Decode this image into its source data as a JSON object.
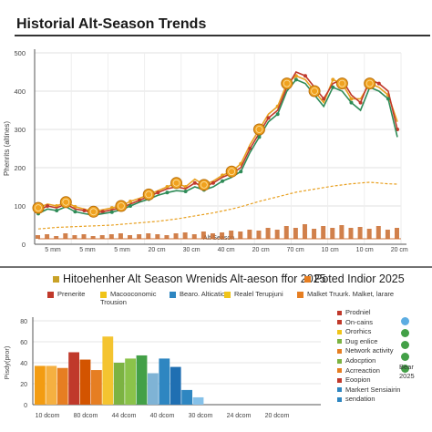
{
  "chart_data": [
    {
      "type": "line",
      "title": "Historial Alt-Season Trends",
      "xlabel": "Alt-Season",
      "ylabel": "Phenrits (altines)",
      "ylim": [
        0,
        500
      ],
      "yticks": [
        "0",
        "100",
        "200",
        "300",
        "400",
        "500"
      ],
      "xticks": [
        "5 mm",
        "5 mm",
        "5 mm",
        "20 cm",
        "30 cm",
        "40 cm",
        "20 cm",
        "70 cm",
        "10 cm",
        "10 cm",
        "20 cm"
      ],
      "grid": true,
      "x": [
        0,
        1,
        2,
        3,
        4,
        5,
        6,
        7,
        8,
        9,
        10,
        11,
        12,
        13,
        14,
        15,
        16,
        17,
        18,
        19,
        20,
        21,
        22,
        23,
        24,
        25,
        26,
        27,
        28,
        29,
        30,
        31,
        32,
        33,
        34,
        35,
        36,
        37,
        38,
        39
      ],
      "series": [
        {
          "color": "#e8a020",
          "values": [
            95,
            105,
            100,
            110,
            98,
            92,
            85,
            90,
            95,
            100,
            112,
            120,
            130,
            140,
            150,
            160,
            150,
            170,
            155,
            165,
            180,
            190,
            210,
            260,
            300,
            340,
            360,
            420,
            440,
            430,
            400,
            370,
            430,
            420,
            380,
            380,
            420,
            410,
            390,
            320
          ]
        },
        {
          "color": "#c0392b",
          "values": [
            88,
            100,
            95,
            105,
            92,
            88,
            82,
            85,
            90,
            95,
            105,
            115,
            125,
            135,
            145,
            150,
            145,
            160,
            150,
            160,
            175,
            185,
            200,
            250,
            290,
            330,
            350,
            410,
            450,
            440,
            410,
            380,
            420,
            430,
            390,
            370,
            430,
            420,
            400,
            300
          ]
        },
        {
          "color": "#2e8b57",
          "values": [
            80,
            92,
            88,
            98,
            85,
            80,
            76,
            80,
            84,
            90,
            100,
            110,
            118,
            128,
            135,
            140,
            138,
            150,
            142,
            150,
            165,
            175,
            190,
            240,
            280,
            320,
            340,
            400,
            430,
            420,
            390,
            360,
            410,
            400,
            370,
            350,
            410,
            400,
            380,
            280
          ]
        }
      ],
      "trend": {
        "color": "#e8a020",
        "values": [
          40,
          42,
          44,
          45,
          46,
          47,
          48,
          49,
          50,
          52,
          54,
          56,
          58,
          60,
          63,
          66,
          70,
          74,
          78,
          82,
          87,
          92,
          98,
          105,
          112,
          118,
          124,
          130,
          136,
          140,
          144,
          148,
          152,
          155,
          158,
          160,
          162,
          160,
          158,
          157
        ]
      },
      "volume": [
        4,
        5,
        3,
        6,
        4,
        5,
        3,
        4,
        5,
        6,
        4,
        5,
        6,
        5,
        4,
        6,
        7,
        5,
        8,
        6,
        7,
        9,
        8,
        10,
        9,
        12,
        10,
        14,
        12,
        16,
        11,
        14,
        12,
        15,
        12,
        13,
        11,
        14,
        10,
        12
      ]
    },
    {
      "type": "bar",
      "title": "Hitoehenher Alt Season Wrenids Alt-aeson ffor 2025",
      "ylabel": "Pisdy(pror)",
      "ylim": [
        0,
        80
      ],
      "yticks": [
        "0",
        "20",
        "40",
        "60",
        "80"
      ],
      "xticks": [
        "10 dcom",
        "80 dcom",
        "44 dcom",
        "40 dcom",
        "30 dcom",
        "24 dcom",
        "20 dcom"
      ],
      "values": [
        37,
        37,
        35,
        50,
        43,
        33,
        65,
        40,
        44,
        47,
        30,
        44,
        36,
        14,
        7
      ],
      "colors": [
        "#f39c12",
        "#f5b041",
        "#e67e22",
        "#c0392b",
        "#d35400",
        "#e67e22",
        "#f4c430",
        "#7cb342",
        "#8bc34a",
        "#43a047",
        "#7fb3d5",
        "#2e86c1",
        "#1f6fb2",
        "#2e86c1",
        "#85c1e9"
      ]
    }
  ],
  "header": {
    "title": "Historial Alt-Season Trends"
  },
  "section2": {
    "title": "Hitoehenher Alt Season Wrenids Alt-aeson ffor 2025",
    "title_right": "Poted Indior 2025",
    "legend": [
      {
        "label": "Prenerite",
        "color": "#c0392b"
      },
      {
        "label": "Macooconomic Trousion",
        "color": "#f0c419"
      },
      {
        "label": "Bearo. Altication.",
        "color": "#2e86c1"
      },
      {
        "label": "Realel Terupjuni",
        "color": "#f0c419"
      },
      {
        "label": "Malket Truurk. Malket, larare",
        "color": "#e67e22"
      }
    ]
  },
  "side_legend": {
    "items": [
      {
        "label": "Prodniel",
        "color": "#c0392b"
      },
      {
        "label": "On-cains",
        "color": "#c0392b"
      },
      {
        "label": "Ororhics",
        "color": "#f0c419"
      },
      {
        "label": "Dug enlice",
        "color": "#7cb342"
      },
      {
        "label": "Network activity",
        "color": "#e67e22"
      },
      {
        "label": "Adocption",
        "color": "#7cb342"
      },
      {
        "label": "Acrreaction",
        "color": "#e67e22"
      },
      {
        "label": "Eoopion",
        "color": "#c0392b"
      },
      {
        "label": "Markert Sensiairin",
        "color": "#2e86c1"
      },
      {
        "label": "sendation",
        "color": "#2e86c1"
      }
    ],
    "dots": [
      "#5dade2",
      "#43a047",
      "#43a047",
      "#43a047",
      "#43a047"
    ],
    "bear_label": "Bear",
    "bear_year": "2025"
  }
}
